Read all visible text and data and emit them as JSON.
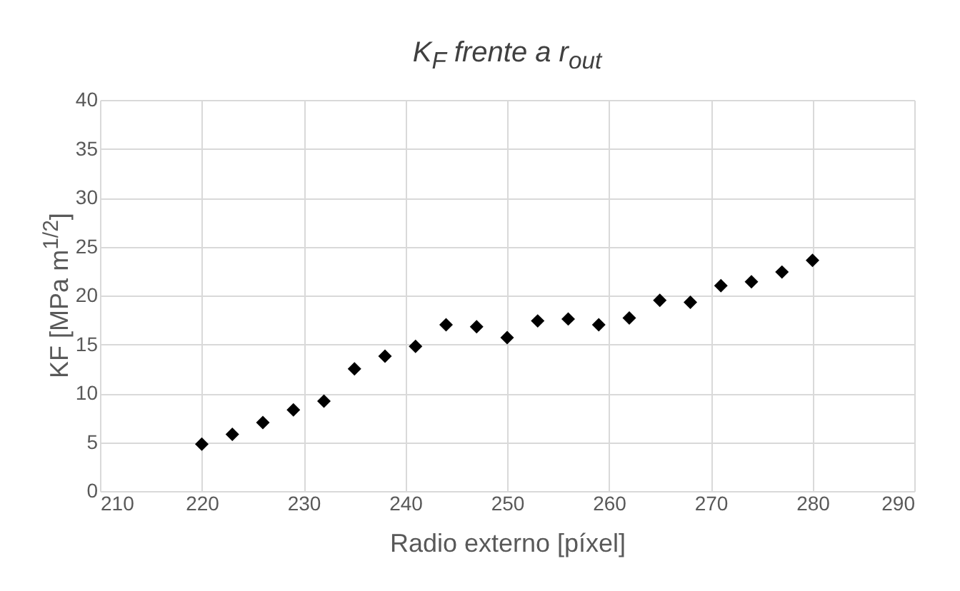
{
  "chart_data": {
    "type": "scatter",
    "title": "K$_{F}$ frente a r$_{out}$",
    "xlabel": "Radio externo [píxel]",
    "ylabel": "KF [MPa m$^{1/2}$]",
    "x": [
      220,
      223,
      226,
      229,
      232,
      235,
      238,
      241,
      244,
      247,
      250,
      253,
      256,
      259,
      262,
      265,
      268,
      271,
      274,
      277,
      280
    ],
    "series": [
      {
        "color": "#000000",
        "values": [
          4.8,
          5.8,
          7.0,
          8.3,
          9.2,
          12.5,
          13.8,
          14.8,
          17.0,
          16.8,
          15.7,
          17.4,
          17.6,
          17.0,
          17.7,
          19.5,
          19.3,
          21.0,
          21.4,
          22.4,
          23.6
        ]
      }
    ],
    "xlim": [
      210,
      290
    ],
    "xticks": [
      210,
      220,
      230,
      240,
      250,
      260,
      270,
      280,
      290
    ],
    "ylim": [
      0,
      40
    ],
    "yticks": [
      0,
      5,
      10,
      15,
      20,
      25,
      30,
      35,
      40
    ],
    "grid": true,
    "marker": "diamond"
  }
}
